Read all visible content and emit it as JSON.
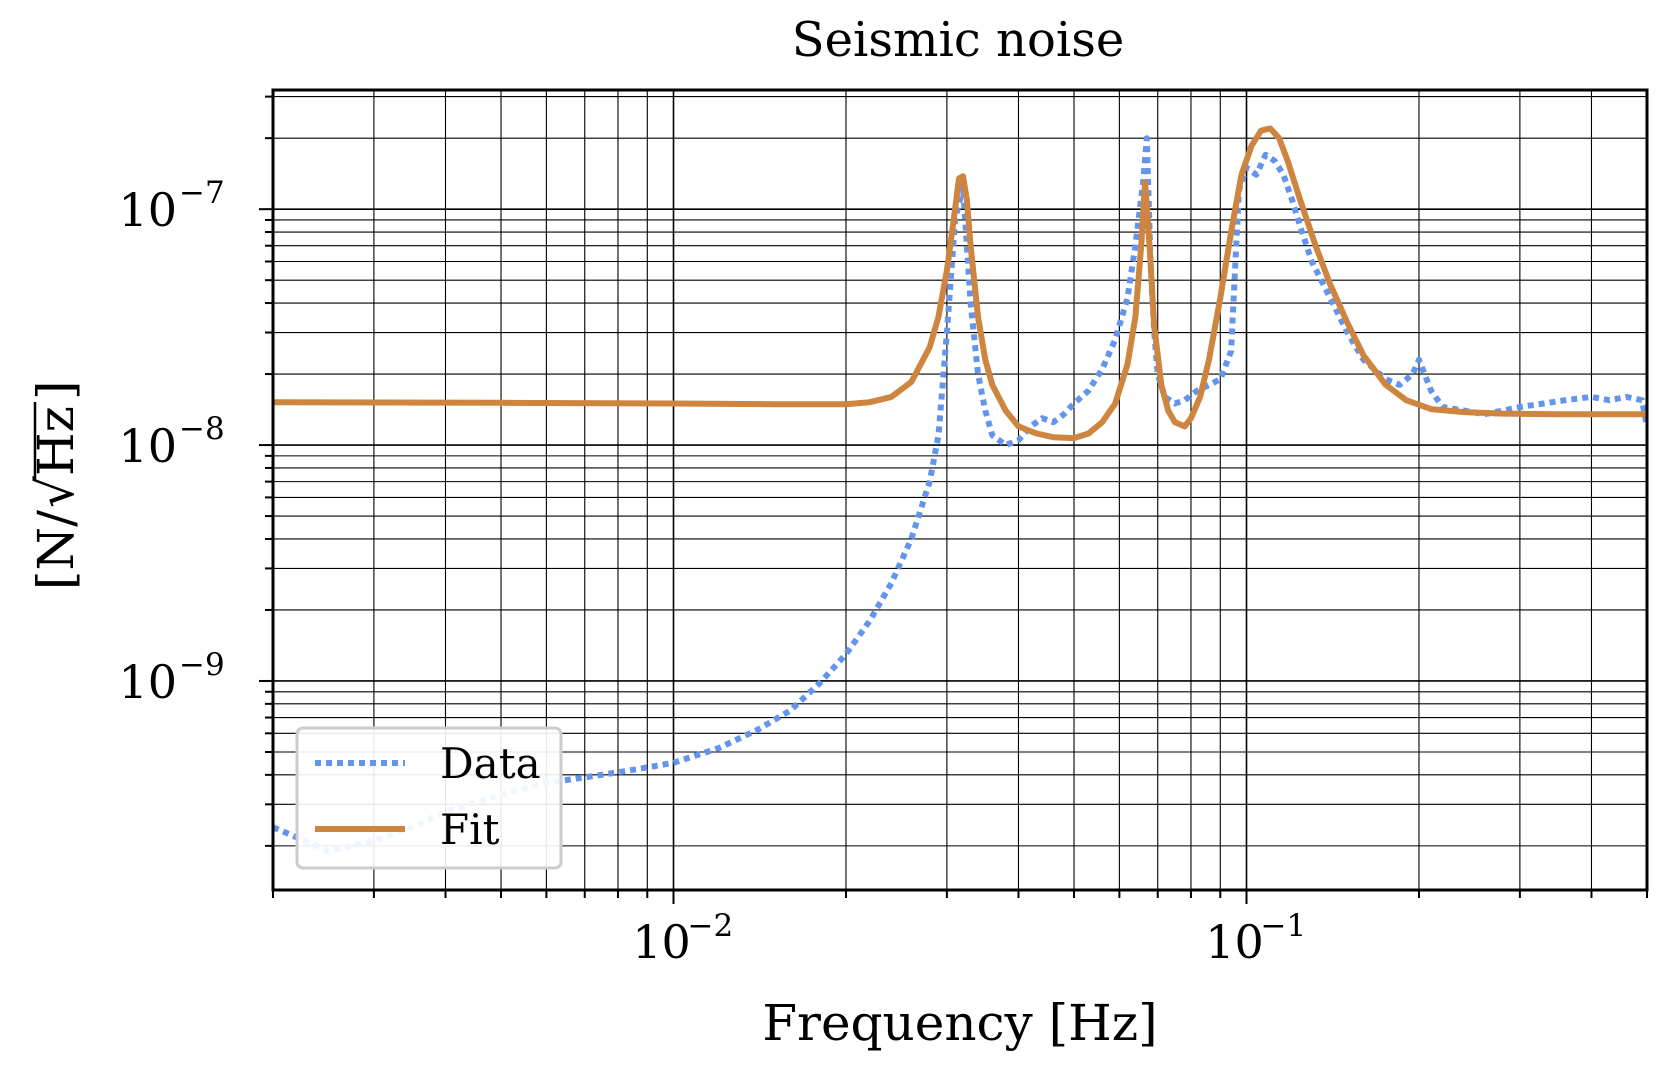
{
  "chart_data": {
    "type": "line",
    "title": "Seismic noise",
    "xlabel": "Frequency [Hz]",
    "ylabel_prefix": "[N/",
    "ylabel_radicand": "Hz",
    "ylabel_suffix": "]",
    "xscale": "log",
    "yscale": "log",
    "xlim": [
      0.002,
      0.5
    ],
    "ylim": [
      1.3e-10,
      3.2e-07
    ],
    "grid": "major+minor",
    "legend_position": "lower-left",
    "x_ticks": [
      {
        "value": 0.01,
        "base": "10",
        "exp": "−2"
      },
      {
        "value": 0.1,
        "base": "10",
        "exp": "−1"
      }
    ],
    "y_ticks": [
      {
        "value": 1e-09,
        "base": "10",
        "exp": "−9"
      },
      {
        "value": 1e-08,
        "base": "10",
        "exp": "−8"
      },
      {
        "value": 1e-07,
        "base": "10",
        "exp": "−7"
      }
    ],
    "series": [
      {
        "name": "Data",
        "color": "#6495ed",
        "style": "dotted",
        "x": [
          0.002,
          0.0025,
          0.003,
          0.0035,
          0.004,
          0.005,
          0.006,
          0.007,
          0.008,
          0.009,
          0.01,
          0.012,
          0.014,
          0.016,
          0.018,
          0.02,
          0.022,
          0.024,
          0.026,
          0.028,
          0.029,
          0.03,
          0.031,
          0.032,
          0.033,
          0.034,
          0.035,
          0.036,
          0.038,
          0.04,
          0.042,
          0.044,
          0.046,
          0.048,
          0.05,
          0.053,
          0.056,
          0.059,
          0.062,
          0.064,
          0.066,
          0.067,
          0.068,
          0.069,
          0.07,
          0.072,
          0.075,
          0.078,
          0.082,
          0.086,
          0.09,
          0.094,
          0.097,
          0.1,
          0.104,
          0.108,
          0.112,
          0.116,
          0.12,
          0.125,
          0.13,
          0.14,
          0.15,
          0.16,
          0.175,
          0.185,
          0.195,
          0.2,
          0.21,
          0.22,
          0.24,
          0.26,
          0.28,
          0.3,
          0.33,
          0.36,
          0.4,
          0.43,
          0.46,
          0.49,
          0.5
        ],
        "y": [
          2.4e-10,
          1.9e-10,
          2.1e-10,
          2.4e-10,
          2.8e-10,
          3.3e-10,
          3.7e-10,
          3.9e-10,
          4.1e-10,
          4.3e-10,
          4.5e-10,
          5.2e-10,
          6.2e-10,
          7.5e-10,
          9.8e-10,
          1.3e-09,
          1.8e-09,
          2.6e-09,
          4e-09,
          7e-09,
          1.1e-08,
          3e-08,
          9e-08,
          1.25e-07,
          4e-08,
          2e-08,
          1.4e-08,
          1.1e-08,
          1e-08,
          1.05e-08,
          1.2e-08,
          1.3e-08,
          1.25e-08,
          1.35e-08,
          1.5e-08,
          1.7e-08,
          2.1e-08,
          2.8e-08,
          4.2e-08,
          7e-08,
          1.3e-07,
          2e-07,
          6e-08,
          3e-08,
          2e-08,
          1.6e-08,
          1.5e-08,
          1.55e-08,
          1.7e-08,
          1.8e-08,
          1.9e-08,
          2.5e-08,
          1.2e-07,
          1.5e-07,
          1.4e-07,
          1.7e-07,
          1.6e-07,
          1.4e-07,
          1.1e-07,
          8e-08,
          6e-08,
          4.2e-08,
          3e-08,
          2.3e-08,
          1.9e-08,
          1.8e-08,
          2e-08,
          2.3e-08,
          1.7e-08,
          1.45e-08,
          1.4e-08,
          1.35e-08,
          1.4e-08,
          1.45e-08,
          1.5e-08,
          1.55e-08,
          1.6e-08,
          1.55e-08,
          1.6e-08,
          1.55e-08,
          1.2e-08
        ]
      },
      {
        "name": "Fit",
        "color": "#cd853f",
        "style": "solid",
        "x": [
          0.002,
          0.005,
          0.01,
          0.015,
          0.02,
          0.022,
          0.024,
          0.026,
          0.028,
          0.029,
          0.03,
          0.031,
          0.0315,
          0.032,
          0.0325,
          0.033,
          0.034,
          0.035,
          0.036,
          0.038,
          0.04,
          0.043,
          0.046,
          0.05,
          0.053,
          0.056,
          0.059,
          0.062,
          0.064,
          0.0655,
          0.0665,
          0.067,
          0.068,
          0.069,
          0.071,
          0.073,
          0.075,
          0.078,
          0.08,
          0.083,
          0.086,
          0.09,
          0.094,
          0.098,
          0.102,
          0.106,
          0.11,
          0.114,
          0.118,
          0.124,
          0.132,
          0.14,
          0.15,
          0.16,
          0.175,
          0.19,
          0.21,
          0.24,
          0.28,
          0.35,
          0.42,
          0.5
        ],
        "y": [
          1.52e-08,
          1.51e-08,
          1.5e-08,
          1.49e-08,
          1.49e-08,
          1.52e-08,
          1.6e-08,
          1.85e-08,
          2.6e-08,
          3.5e-08,
          5.5e-08,
          1e-07,
          1.35e-07,
          1.38e-07,
          1.1e-07,
          7e-08,
          3.5e-08,
          2.3e-08,
          1.8e-08,
          1.4e-08,
          1.2e-08,
          1.12e-08,
          1.08e-08,
          1.07e-08,
          1.12e-08,
          1.25e-08,
          1.5e-08,
          2.2e-08,
          3.5e-08,
          7e-08,
          1.3e-07,
          1.05e-07,
          6e-08,
          3.2e-08,
          1.8e-08,
          1.4e-08,
          1.25e-08,
          1.2e-08,
          1.3e-08,
          1.6e-08,
          2.3e-08,
          4.2e-08,
          8e-08,
          1.4e-07,
          1.85e-07,
          2.15e-07,
          2.2e-07,
          2e-07,
          1.6e-07,
          1.1e-07,
          7e-08,
          4.8e-08,
          3.3e-08,
          2.4e-08,
          1.8e-08,
          1.55e-08,
          1.42e-08,
          1.38e-08,
          1.36e-08,
          1.35e-08,
          1.35e-08,
          1.35e-08
        ]
      }
    ]
  }
}
